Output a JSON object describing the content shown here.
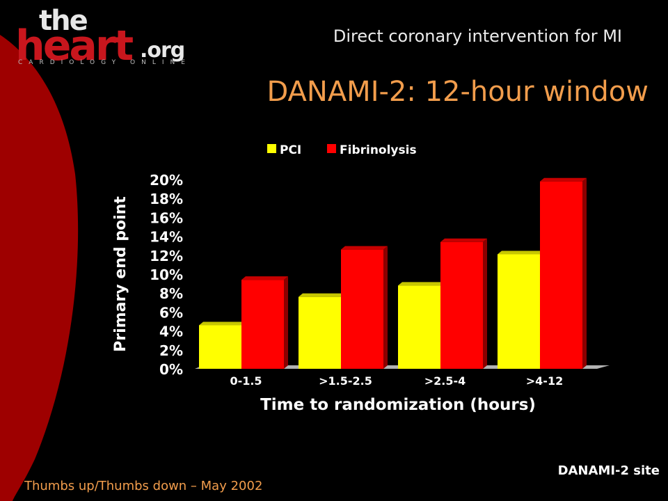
{
  "logo": {
    "the": "the",
    "heart": "heart",
    "org": ".org",
    "tagline": "CARDIOLOGY ONLINE"
  },
  "header": {
    "title": "Direct coronary intervention for MI"
  },
  "slide": {
    "title": "DANAMI-2: 12-hour window",
    "source": "DANAMI-2 site",
    "footer": "Thumbs up/Thumbs down – May 2002"
  },
  "colors": {
    "pci": "#ffff00",
    "fibrinolysis": "#ff0000",
    "accent": "#f29d4c",
    "swoosh": "#9e0000"
  },
  "chart_data": {
    "type": "bar",
    "title": "",
    "xlabel": "Time to randomization (hours)",
    "ylabel": "Primary end point",
    "categories": [
      "0-1.5",
      ">1.5-2.5",
      ">2.5-4",
      ">4-12"
    ],
    "series": [
      {
        "name": "PCI",
        "values": [
          4.6,
          7.6,
          8.8,
          12.1
        ]
      },
      {
        "name": "Fibrinolysis",
        "values": [
          9.4,
          12.6,
          13.4,
          19.8
        ]
      }
    ],
    "ylim": [
      0,
      20
    ],
    "yticks": [
      "0%",
      "2%",
      "4%",
      "6%",
      "8%",
      "10%",
      "12%",
      "14%",
      "16%",
      "18%",
      "20%"
    ],
    "legend_position": "top",
    "grid": false
  }
}
